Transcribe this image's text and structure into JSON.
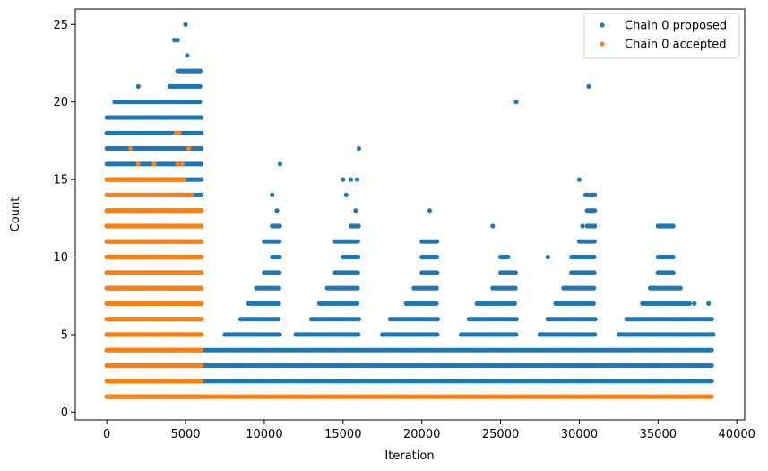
{
  "chart_data": {
    "type": "scatter",
    "title": "",
    "xlabel": "Iteration",
    "ylabel": "Count",
    "xlim": [
      -2000,
      40500
    ],
    "ylim": [
      -0.5,
      26
    ],
    "xticks": [
      0,
      5000,
      10000,
      15000,
      20000,
      25000,
      30000,
      35000,
      40000
    ],
    "yticks": [
      0,
      5,
      10,
      15,
      20,
      25
    ],
    "grid": false,
    "legend_position": "top-right",
    "colors": {
      "proposed": "#1f77b4",
      "accepted": "#ff7f0e"
    },
    "series": [
      {
        "name": "Chain 0 proposed",
        "color": "#1f77b4",
        "bands": [
          {
            "y": 1,
            "ranges": [
              [
                0,
                6000
              ]
            ]
          },
          {
            "y": 2,
            "ranges": [
              [
                0,
                38500
              ]
            ]
          },
          {
            "y": 3,
            "ranges": [
              [
                0,
                38500
              ]
            ]
          },
          {
            "y": 4,
            "ranges": [
              [
                0,
                38500
              ]
            ]
          },
          {
            "y": 5,
            "ranges": [
              [
                0,
                6000
              ],
              [
                7500,
                11000
              ],
              [
                12000,
                16000
              ],
              [
                17500,
                21000
              ],
              [
                22500,
                26000
              ],
              [
                27500,
                31000
              ],
              [
                32500,
                38500
              ]
            ]
          },
          {
            "y": 6,
            "ranges": [
              [
                0,
                6000
              ],
              [
                8500,
                11000
              ],
              [
                13000,
                16000
              ],
              [
                18000,
                21000
              ],
              [
                23000,
                26000
              ],
              [
                28000,
                31000
              ],
              [
                33000,
                38500
              ]
            ]
          },
          {
            "y": 7,
            "ranges": [
              [
                0,
                6000
              ],
              [
                9000,
                11000
              ],
              [
                13500,
                16000
              ],
              [
                19000,
                21000
              ],
              [
                23500,
                26000
              ],
              [
                28500,
                31000
              ],
              [
                34000,
                37000
              ]
            ]
          },
          {
            "y": 8,
            "ranges": [
              [
                0,
                6000
              ],
              [
                9500,
                11000
              ],
              [
                14000,
                16000
              ],
              [
                19500,
                21000
              ],
              [
                24500,
                26000
              ],
              [
                29000,
                31000
              ],
              [
                34500,
                36500
              ]
            ]
          },
          {
            "y": 9,
            "ranges": [
              [
                0,
                6000
              ],
              [
                10000,
                11000
              ],
              [
                14500,
                16000
              ],
              [
                20000,
                21000
              ],
              [
                25000,
                26000
              ],
              [
                29500,
                31000
              ],
              [
                35000,
                36000
              ]
            ]
          },
          {
            "y": 10,
            "ranges": [
              [
                0,
                6000
              ],
              [
                10500,
                11000
              ],
              [
                15000,
                16000
              ],
              [
                20000,
                21000
              ],
              [
                25000,
                25500
              ],
              [
                29500,
                31000
              ],
              [
                35000,
                36000
              ]
            ]
          },
          {
            "y": 11,
            "ranges": [
              [
                0,
                6000
              ],
              [
                10000,
                11000
              ],
              [
                14500,
                16000
              ],
              [
                20000,
                21000
              ],
              [
                30000,
                31000
              ]
            ]
          },
          {
            "y": 12,
            "ranges": [
              [
                0,
                6000
              ],
              [
                10500,
                11000
              ],
              [
                15500,
                16000
              ],
              [
                30500,
                31000
              ],
              [
                35000,
                36000
              ]
            ]
          },
          {
            "y": 13,
            "ranges": [
              [
                0,
                6000
              ],
              [
                30500,
                31000
              ]
            ]
          },
          {
            "y": 14,
            "ranges": [
              [
                0,
                6000
              ],
              [
                30500,
                31000
              ]
            ]
          },
          {
            "y": 15,
            "ranges": [
              [
                0,
                6000
              ]
            ]
          },
          {
            "y": 16,
            "ranges": [
              [
                0,
                6000
              ]
            ]
          },
          {
            "y": 17,
            "ranges": [
              [
                0,
                6000
              ]
            ]
          },
          {
            "y": 18,
            "ranges": [
              [
                0,
                6000
              ]
            ]
          },
          {
            "y": 19,
            "ranges": [
              [
                0,
                6000
              ]
            ]
          },
          {
            "y": 20,
            "ranges": [
              [
                500,
                6000
              ]
            ]
          },
          {
            "y": 21,
            "ranges": [
              [
                4000,
                6000
              ]
            ]
          },
          {
            "y": 22,
            "ranges": [
              [
                4500,
                6000
              ]
            ]
          }
        ],
        "points": [
          [
            2000,
            21
          ],
          [
            4500,
            24
          ],
          [
            4300,
            24
          ],
          [
            5000,
            25
          ],
          [
            5100,
            23
          ],
          [
            5600,
            22
          ],
          [
            5800,
            22
          ],
          [
            10500,
            14
          ],
          [
            10800,
            13
          ],
          [
            10600,
            12
          ],
          [
            11000,
            16
          ],
          [
            15000,
            15
          ],
          [
            15200,
            14
          ],
          [
            15500,
            15
          ],
          [
            15800,
            13
          ],
          [
            16000,
            17
          ],
          [
            15900,
            15
          ],
          [
            20500,
            13
          ],
          [
            24500,
            12
          ],
          [
            26000,
            20
          ],
          [
            28000,
            10
          ],
          [
            30000,
            15
          ],
          [
            30200,
            12
          ],
          [
            30400,
            14
          ],
          [
            30600,
            21
          ],
          [
            30800,
            13
          ],
          [
            30900,
            14
          ],
          [
            35400,
            12
          ],
          [
            35600,
            12
          ],
          [
            37300,
            7
          ],
          [
            38200,
            7
          ],
          [
            38400,
            6
          ]
        ]
      },
      {
        "name": "Chain 0 accepted",
        "color": "#ff7f0e",
        "bands": [
          {
            "y": 1,
            "ranges": [
              [
                0,
                38500
              ]
            ]
          },
          {
            "y": 2,
            "ranges": [
              [
                0,
                6000
              ]
            ]
          },
          {
            "y": 3,
            "ranges": [
              [
                0,
                6000
              ]
            ]
          },
          {
            "y": 4,
            "ranges": [
              [
                0,
                6000
              ]
            ]
          },
          {
            "y": 5,
            "ranges": [
              [
                0,
                6000
              ]
            ]
          },
          {
            "y": 6,
            "ranges": [
              [
                0,
                6000
              ]
            ]
          },
          {
            "y": 7,
            "ranges": [
              [
                0,
                6000
              ]
            ]
          },
          {
            "y": 8,
            "ranges": [
              [
                0,
                6000
              ]
            ]
          },
          {
            "y": 9,
            "ranges": [
              [
                0,
                6000
              ]
            ]
          },
          {
            "y": 10,
            "ranges": [
              [
                0,
                6000
              ]
            ]
          },
          {
            "y": 11,
            "ranges": [
              [
                0,
                6000
              ]
            ]
          },
          {
            "y": 12,
            "ranges": [
              [
                0,
                6000
              ]
            ]
          },
          {
            "y": 13,
            "ranges": [
              [
                0,
                6000
              ]
            ]
          },
          {
            "y": 14,
            "ranges": [
              [
                0,
                5500
              ]
            ]
          },
          {
            "y": 15,
            "ranges": [
              [
                0,
                5000
              ]
            ]
          }
        ],
        "points": [
          [
            4400,
            18
          ],
          [
            4600,
            18
          ],
          [
            5200,
            17
          ],
          [
            4500,
            16
          ],
          [
            1500,
            17
          ],
          [
            2000,
            16
          ],
          [
            3000,
            16
          ],
          [
            4800,
            16
          ]
        ]
      }
    ]
  }
}
